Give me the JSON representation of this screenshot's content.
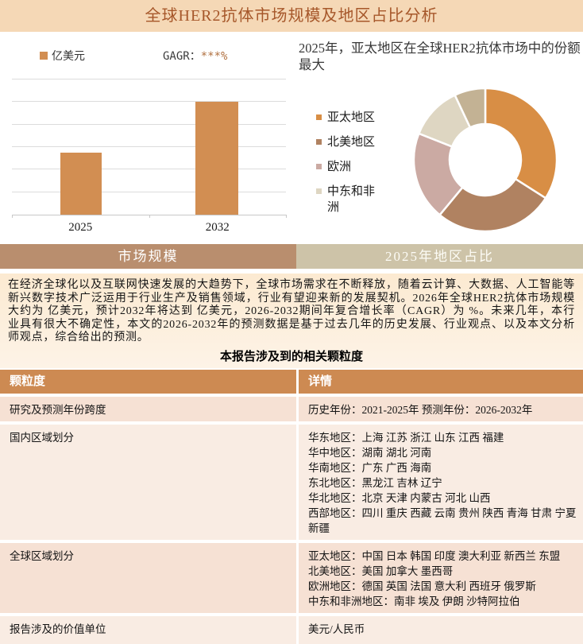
{
  "header": {
    "title": "全球HER2抗体市场规模及地区占比分析"
  },
  "bar_section": {
    "legend_label": "亿美元",
    "cagr_label": "GAGR：",
    "cagr_value": "***%"
  },
  "donut_section": {
    "title": "2025年，亚太地区在全球HER2抗体市场中的份额最大",
    "legend": [
      "亚太地区",
      "北美地区",
      "欧洲",
      "中东和非洲"
    ]
  },
  "tabs": [
    {
      "label": "市场规模"
    },
    {
      "label": "2025年地区占比"
    }
  ],
  "intro": "在经济全球化以及互联网快速发展的大趋势下，全球市场需求在不断释放，随着云计算、大数据、人工智能等新兴数字技术广泛运用于行业生产及销售领域，行业有望迎来新的发展契机。2026年全球HER2抗体市场规模大约为 亿美元，预计2032年将达到 亿美元，2026-2032期间年复合增长率（CAGR）为 %。未来几年，本行业具有很大不确定性，本文的2026-2032年的预测数据是基于过去几年的历史发展、行业观点、以及本文分析师观点，综合给出的预测。",
  "table": {
    "title": "本报告涉及到的相关颗粒度",
    "headers": [
      "颗粒度",
      "详情"
    ],
    "rows": [
      {
        "label": "研究及预测年份跨度",
        "detail": "历史年份：2021-2025年 预测年份：2026-2032年"
      },
      {
        "label": "国内区域划分",
        "detail": "华东地区：上海 江苏 浙江 山东 江西 福建\n华中地区：湖南 湖北 河南\n华南地区：广东 广西 海南\n东北地区：黑龙江 吉林 辽宁\n华北地区：北京 天津 内蒙古 河北 山西\n西部地区：四川 重庆 西藏 云南 贵州 陕西 青海 甘肃 宁夏 新疆"
      },
      {
        "label": "全球区域划分",
        "detail": "亚太地区：中国 日本 韩国 印度 澳大利亚 新西兰 东盟\n北美地区：美国 加拿大 墨西哥\n欧洲地区：德国 英国 法国 意大利 西班牙 俄罗斯\n中东和非洲地区：南非 埃及 伊朗 沙特阿拉伯"
      },
      {
        "label": "报告涉及的价值单位",
        "detail": "美元/人民币"
      }
    ]
  },
  "chart_data": [
    {
      "type": "bar",
      "title": "市场规模",
      "categories": [
        "2025",
        "2032"
      ],
      "values": [
        2.75,
        5
      ],
      "ylim": [
        0,
        6
      ],
      "ylabel": "亿美元",
      "y_tick_labels_hidden": true,
      "gridlines": 6,
      "bar_color": "#d28e52",
      "note": "数值被隐去（***），柱高按网格线估读：2025≈2.75格，2032≈5格（共6格）"
    },
    {
      "type": "pie",
      "title": "2025年，亚太地区在全球HER2抗体市场中的份额最大",
      "donut": true,
      "start_angle_deg": 0,
      "slices": [
        {
          "label": "亚太地区",
          "value": 34,
          "color": "#d88e45"
        },
        {
          "label": "北美地区",
          "value": 27,
          "color": "#b08261"
        },
        {
          "label": "欧洲",
          "value": 20,
          "color": "#cbaaa3"
        },
        {
          "label": "中东和非洲",
          "value": 12,
          "color": "#ded6c2"
        },
        {
          "label": "",
          "value": 7,
          "color": "#c3b294"
        }
      ],
      "legend_position": "left",
      "note": "百分比按扇形角度估读；第五个小扇区未在图例中标注"
    }
  ],
  "colors": {
    "header_bg": "#f5d8b6",
    "header_text": "#a6572a",
    "tab_left_bg": "#b98e6e",
    "tab_right_bg": "#cdc3a8",
    "table_header_bg": "#cd8a52",
    "row_odd_bg": "#f6e1d4",
    "row_even_bg": "#f9ece3",
    "intro_bg": "#fcead1",
    "accent": "#d28e52"
  }
}
